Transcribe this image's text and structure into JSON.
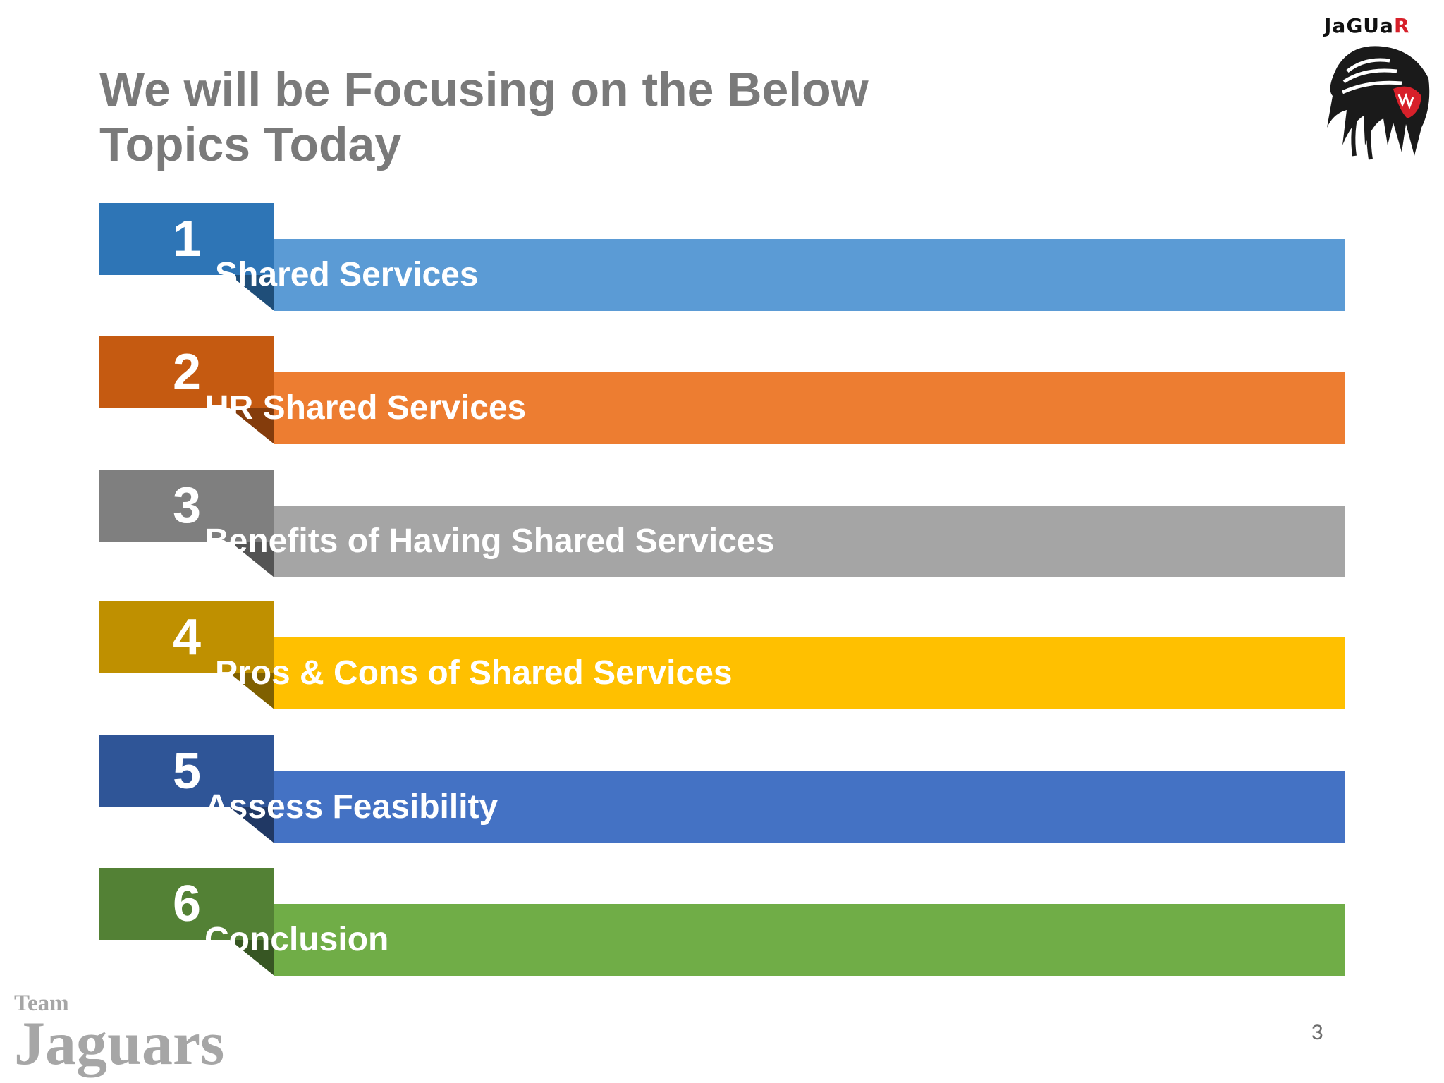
{
  "title": {
    "line1": "We will be Focusing on the Below",
    "line2": "Topics Today"
  },
  "logo": {
    "word_main": "JaGUa",
    "word_accent": "R",
    "icon": "jaguar-head-icon"
  },
  "agenda": [
    {
      "number": "1",
      "label": "Shared Services",
      "tab_color": "#2e75b6",
      "band_color": "#5b9bd5",
      "fold_color": "#1f4e79"
    },
    {
      "number": "2",
      "label": "HR Shared Services",
      "tab_color": "#c55a11",
      "band_color": "#ed7d31",
      "fold_color": "#843c0c"
    },
    {
      "number": "3",
      "label": "Benefits of Having Shared Services",
      "tab_color": "#7f7f7f",
      "band_color": "#a5a5a5",
      "fold_color": "#545454"
    },
    {
      "number": "4",
      "label": "Pros & Cons of Shared Services",
      "tab_color": "#bf9000",
      "band_color": "#ffc000",
      "fold_color": "#7f6000"
    },
    {
      "number": "5",
      "label": "Assess Feasibility",
      "tab_color": "#2f5597",
      "band_color": "#4472c4",
      "fold_color": "#203864"
    },
    {
      "number": "6",
      "label": "Conclusion",
      "tab_color": "#538135",
      "band_color": "#70ad47",
      "fold_color": "#375623"
    }
  ],
  "footer": {
    "team_small": "Team",
    "team_large": "Jaguars",
    "page_number": "3"
  }
}
